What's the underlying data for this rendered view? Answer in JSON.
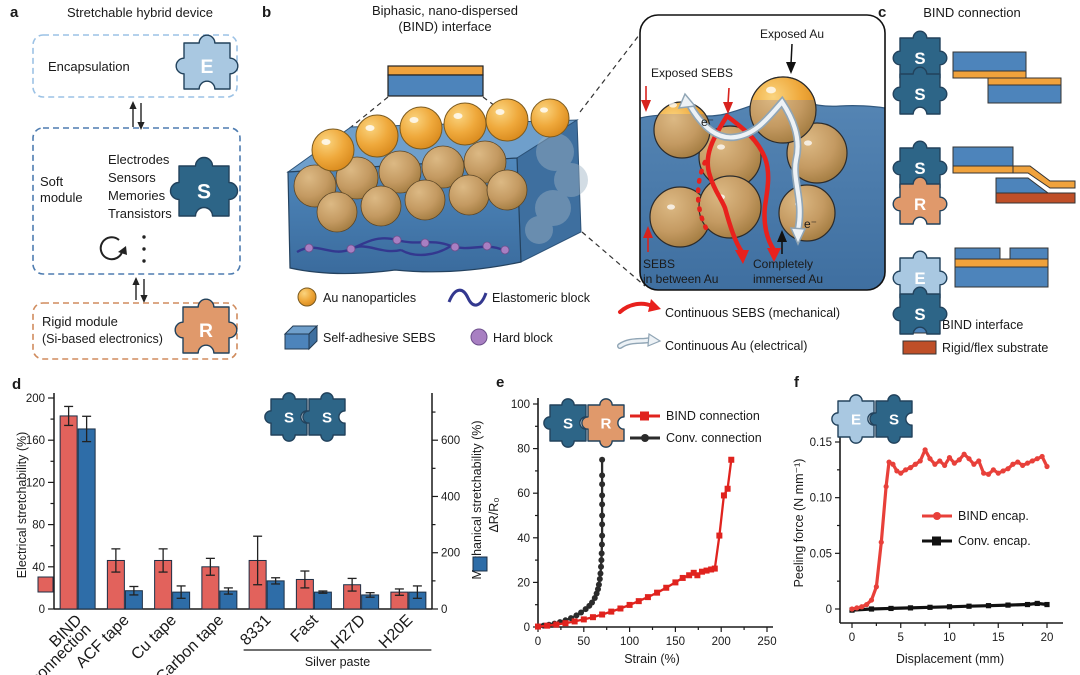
{
  "figure": {
    "panel_a": {
      "letter": "a",
      "title": "Stretchable hybrid device",
      "encapsulation_label": "Encapsulation",
      "soft_module_label_1": "Soft",
      "soft_module_label_2": "module",
      "soft_items": [
        "Electrodes",
        "Sensors",
        "Memories",
        "Transistors"
      ],
      "rigid_label_1": "Rigid module",
      "rigid_label_2": "(Si-based electronics)",
      "piece_e": "E",
      "piece_s": "S",
      "piece_r": "R"
    },
    "panel_b": {
      "letter": "b",
      "title_line1": "Biphasic, nano-dispersed",
      "title_line2": "(BIND) interface",
      "legend": {
        "au": "Au nanoparticles",
        "elastomer": "Elastomeric block",
        "sebs": "Self-adhesive SEBS",
        "hard": "Hard block",
        "continuous_sebs": "Continuous SEBS (mechanical)",
        "continuous_au": "Continuous Au (electrical)"
      },
      "inset": {
        "exposed_au": "Exposed Au",
        "exposed_sebs": "Exposed SEBS",
        "electron": "e⁻",
        "sebs_between_1": "SEBS",
        "sebs_between_2": "in between Au",
        "immersed_1": "Completely",
        "immersed_2": "immersed Au"
      }
    },
    "panel_c": {
      "letter": "c",
      "title": "BIND connection",
      "pairs": [
        [
          "S",
          "S"
        ],
        [
          "S",
          "R"
        ],
        [
          "E",
          "S"
        ]
      ],
      "legend_bind": "BIND interface",
      "legend_substrate": "Rigid/flex substrate"
    }
  },
  "chart_data": [
    {
      "id": "d",
      "letter": "d",
      "type": "bar",
      "categories": [
        "BIND\nconnection",
        "ACF tape",
        "Cu tape",
        "Carbon tape",
        "8331",
        "Fast",
        "H27D",
        "H20E"
      ],
      "group_label": {
        "text": "Silver paste",
        "from": 4,
        "to": 7
      },
      "left_axis": {
        "label": "Electrical stretchability (%)",
        "ticks": [
          0,
          40,
          80,
          120,
          160,
          200
        ],
        "range": [
          0,
          200
        ],
        "minor_step": 20
      },
      "right_axis": {
        "label": "Mechanical stretchability (%)",
        "ticks": [
          0,
          200,
          400,
          600
        ],
        "range": [
          0,
          750
        ],
        "minor_step": 100
      },
      "series": [
        {
          "name": "Electrical stretchability (%)",
          "axis": "left",
          "color": "#e2625c",
          "values": [
            183,
            46,
            46,
            40,
            46,
            28,
            23,
            16
          ],
          "errors": [
            9,
            11,
            11,
            8,
            23,
            8,
            6,
            3
          ]
        },
        {
          "name": "Mechanical stretchability (%)",
          "axis": "right",
          "color": "#2e6da8",
          "values": [
            640,
            65,
            60,
            64,
            100,
            60,
            50,
            60
          ],
          "errors": [
            45,
            15,
            22,
            11,
            11,
            4,
            8,
            22
          ]
        }
      ],
      "puzzle": [
        "S",
        "S"
      ]
    },
    {
      "id": "e",
      "letter": "e",
      "type": "line",
      "xlabel": "Strain (%)",
      "ylabel": "ΔR/R₀",
      "xlim": [
        0,
        250
      ],
      "ylim": [
        0,
        100
      ],
      "xticks": [
        0,
        50,
        100,
        150,
        200,
        250
      ],
      "yticks": [
        0,
        20,
        40,
        60,
        80,
        100
      ],
      "xminor": 25,
      "yminor": 10,
      "puzzle": [
        "S",
        "R"
      ],
      "series": [
        {
          "name": "BIND connection",
          "color": "#e0231e",
          "marker": "square",
          "points": [
            [
              0,
              0.2
            ],
            [
              10,
              0.6
            ],
            [
              20,
              1.1
            ],
            [
              30,
              1.7
            ],
            [
              40,
              2.5
            ],
            [
              50,
              3.4
            ],
            [
              60,
              4.4
            ],
            [
              70,
              5.6
            ],
            [
              80,
              6.9
            ],
            [
              90,
              8.3
            ],
            [
              100,
              9.9
            ],
            [
              110,
              11.6
            ],
            [
              120,
              13.4
            ],
            [
              130,
              15.4
            ],
            [
              140,
              17.6
            ],
            [
              150,
              20
            ],
            [
              158,
              22
            ],
            [
              165,
              23.2
            ],
            [
              170,
              24.3
            ],
            [
              174,
              23.2
            ],
            [
              179,
              24.8
            ],
            [
              184,
              25.3
            ],
            [
              189,
              25.8
            ],
            [
              193,
              26.2
            ],
            [
              198,
              41
            ],
            [
              203,
              59
            ],
            [
              207,
              62
            ],
            [
              211,
              75
            ]
          ]
        },
        {
          "name": "Conv. connection",
          "color": "#2b2b2b",
          "marker": "circle",
          "points": [
            [
              0,
              0.3
            ],
            [
              6,
              0.6
            ],
            [
              12,
              1
            ],
            [
              18,
              1.5
            ],
            [
              24,
              2.2
            ],
            [
              30,
              3
            ],
            [
              36,
              4
            ],
            [
              42,
              5.2
            ],
            [
              47,
              6.5
            ],
            [
              52,
              8
            ],
            [
              56,
              9.5
            ],
            [
              59,
              11
            ],
            [
              62,
              13
            ],
            [
              64,
              15
            ],
            [
              65.5,
              17
            ],
            [
              66.5,
              19
            ],
            [
              67.5,
              21.5
            ],
            [
              68.2,
              24
            ],
            [
              68.8,
              27
            ],
            [
              69.2,
              30
            ],
            [
              69.5,
              33
            ],
            [
              69.8,
              37
            ],
            [
              70,
              41
            ],
            [
              70,
              46
            ],
            [
              70,
              50
            ],
            [
              70,
              55
            ],
            [
              70,
              59
            ],
            [
              70,
              64
            ],
            [
              70,
              68
            ],
            [
              70,
              75
            ]
          ]
        }
      ]
    },
    {
      "id": "f",
      "letter": "f",
      "type": "line",
      "xlabel": "Displacement (mm)",
      "ylabel": "Peeling force (N mm⁻¹)",
      "xlim": [
        0,
        20
      ],
      "ylim": [
        0,
        0.15
      ],
      "xticks": [
        0,
        5,
        10,
        15,
        20
      ],
      "ytick_labels": [
        "0",
        "0.05",
        "0.10",
        "0.15"
      ],
      "yticks": [
        0,
        0.05,
        0.1,
        0.15
      ],
      "xminor": 2.5,
      "yminor": 0.025,
      "puzzle": [
        "E",
        "S"
      ],
      "series": [
        {
          "name": "BIND encap.",
          "color": "#e8403a",
          "marker": "circle",
          "points": [
            [
              0,
              0
            ],
            [
              0.5,
              0.001
            ],
            [
              1,
              0.002
            ],
            [
              1.5,
              0.004
            ],
            [
              2,
              0.008
            ],
            [
              2.5,
              0.02
            ],
            [
              3,
              0.06
            ],
            [
              3.5,
              0.11
            ],
            [
              3.8,
              0.132
            ],
            [
              4.2,
              0.13
            ],
            [
              4.6,
              0.124
            ],
            [
              5,
              0.122
            ],
            [
              5.5,
              0.125
            ],
            [
              6,
              0.127
            ],
            [
              6.5,
              0.13
            ],
            [
              7,
              0.133
            ],
            [
              7.5,
              0.143
            ],
            [
              8,
              0.135
            ],
            [
              8.5,
              0.13
            ],
            [
              9,
              0.133
            ],
            [
              9.5,
              0.129
            ],
            [
              10,
              0.136
            ],
            [
              10.5,
              0.131
            ],
            [
              11,
              0.134
            ],
            [
              11.5,
              0.139
            ],
            [
              12,
              0.135
            ],
            [
              12.5,
              0.13
            ],
            [
              13,
              0.133
            ],
            [
              13.5,
              0.122
            ],
            [
              14,
              0.121
            ],
            [
              14.5,
              0.125
            ],
            [
              15,
              0.122
            ],
            [
              15.5,
              0.124
            ],
            [
              16,
              0.126
            ],
            [
              16.5,
              0.13
            ],
            [
              17,
              0.132
            ],
            [
              17.5,
              0.129
            ],
            [
              18,
              0.131
            ],
            [
              18.5,
              0.133
            ],
            [
              19,
              0.135
            ],
            [
              19.5,
              0.137
            ],
            [
              20,
              0.128
            ]
          ]
        },
        {
          "name": "Conv. encap.",
          "color": "#111111",
          "marker": "square",
          "points": [
            [
              0,
              -0.001
            ],
            [
              2,
              0
            ],
            [
              4,
              0.0005
            ],
            [
              6,
              0.001
            ],
            [
              8,
              0.0015
            ],
            [
              10,
              0.002
            ],
            [
              12,
              0.0025
            ],
            [
              14,
              0.003
            ],
            [
              16,
              0.0035
            ],
            [
              18,
              0.004
            ],
            [
              19,
              0.005
            ],
            [
              20,
              0.004
            ]
          ]
        }
      ]
    }
  ],
  "colors": {
    "bar_red": "#e2625c",
    "bar_blue": "#2e6da8",
    "bar_stroke": "#1c2f45",
    "pieces": {
      "S": "#2d6587",
      "E": "#a9c8e1",
      "R": "#e0996b"
    },
    "piece_stroke": "#22425c",
    "bind_blue": "#4d84bb",
    "bind_orange": "#f0a23c",
    "substrate": "#bf4f28",
    "continuous_sebs_red": "#e8211d",
    "continuous_au_light": "#edf2f6"
  }
}
